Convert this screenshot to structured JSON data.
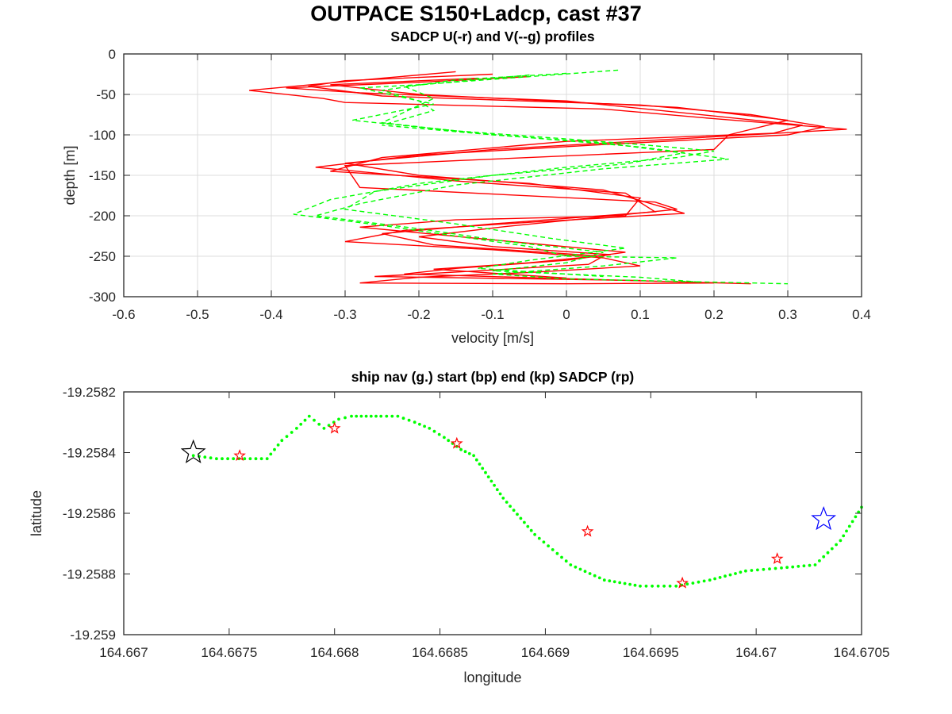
{
  "title": "OUTPACE S150+Ladcp, cast #37",
  "chart_data": [
    {
      "type": "line",
      "title": "SADCP U(-r) and V(--g) profiles",
      "xlabel": "velocity [m/s]",
      "ylabel": "depth [m]",
      "xlim": [
        -0.6,
        0.4
      ],
      "ylim": [
        -300,
        0
      ],
      "xticks": [
        "-0.6",
        "-0.5",
        "-0.4",
        "-0.3",
        "-0.2",
        "-0.1",
        "0",
        "0.1",
        "0.2",
        "0.3",
        "0.4"
      ],
      "yticks": [
        "0",
        "-50",
        "-100",
        "-150",
        "-200",
        "-250",
        "-300"
      ],
      "grid": true,
      "series": [
        {
          "color": "#ff0000",
          "style": "solid",
          "profiles": [
            {
              "x": [
                -0.15,
                -0.25,
                -0.43,
                -0.33,
                -0.3,
                0.05,
                0.2,
                0.38,
                0.15,
                -0.1,
                -0.3,
                -0.2,
                0.05,
                0.16,
                -0.05,
                -0.22,
                -0.3,
                -0.1,
                0.05,
                0.1,
                -0.05,
                -0.2,
                -0.28,
                0.0,
                0.2
              ],
              "y": [
                -22,
                -30,
                -45,
                -55,
                -60,
                -68,
                -80,
                -93,
                -105,
                -118,
                -135,
                -150,
                -168,
                -197,
                -208,
                -218,
                -232,
                -242,
                -252,
                -262,
                -270,
                -276,
                -283,
                -284,
                -283
              ]
            },
            {
              "x": [
                -0.1,
                -0.3,
                -0.35,
                -0.25,
                0.1,
                0.25,
                0.35,
                0.3,
                0.05,
                -0.2,
                -0.34,
                -0.15,
                0.08,
                0.12,
                -0.1,
                -0.25,
                -0.18,
                0.05,
                0.03,
                -0.12,
                -0.26,
                0.1
              ],
              "y": [
                -25,
                -33,
                -40,
                -52,
                -63,
                -75,
                -90,
                -100,
                -112,
                -125,
                -140,
                -157,
                -172,
                -195,
                -210,
                -222,
                -236,
                -250,
                -260,
                -268,
                -275,
                -280
              ]
            },
            {
              "x": [
                -0.05,
                -0.2,
                -0.38,
                -0.28,
                0.0,
                0.15,
                0.32,
                0.28,
                0.0,
                -0.25,
                -0.32,
                -0.05,
                0.1,
                0.08,
                -0.15,
                -0.28,
                -0.12,
                0.08,
                0.0,
                -0.15,
                -0.22,
                0.05,
                0.25
              ],
              "y": [
                -28,
                -35,
                -42,
                -48,
                -58,
                -72,
                -88,
                -98,
                -108,
                -128,
                -145,
                -160,
                -178,
                -200,
                -205,
                -214,
                -228,
                -245,
                -255,
                -265,
                -272,
                -279,
                -284
              ]
            },
            {
              "x": [
                -0.12,
                -0.32,
                -0.2,
                0.15,
                0.3,
                0.22,
                0.2,
                0.1,
                -0.15,
                -0.3,
                -0.28,
                0.12,
                0.15,
                -0.08,
                -0.2,
                -0.1,
                0.06,
                -0.05,
                -0.18,
                0.0
              ],
              "y": [
                -30,
                -38,
                -50,
                -66,
                -82,
                -100,
                -118,
                -122,
                -132,
                -138,
                -165,
                -183,
                -192,
                -213,
                -226,
                -238,
                -248,
                -258,
                -266,
                -277
              ]
            }
          ]
        },
        {
          "color": "#00ff00",
          "style": "dashed",
          "profiles": [
            {
              "x": [
                0.07,
                -0.05,
                -0.2,
                -0.28,
                -0.24,
                -0.18,
                -0.29,
                -0.15,
                0.0,
                0.1,
                0.2,
                0.15,
                0.0,
                -0.2,
                -0.32,
                -0.37,
                -0.25,
                -0.15,
                -0.05,
                0.0,
                0.15,
                0.05,
                -0.1,
                0.0,
                0.3
              ],
              "y": [
                -20,
                -28,
                -38,
                -42,
                -50,
                -62,
                -82,
                -95,
                -105,
                -112,
                -120,
                -128,
                -140,
                -160,
                -180,
                -198,
                -212,
                -225,
                -238,
                -250,
                -252,
                -262,
                -272,
                -278,
                -284
              ]
            },
            {
              "x": [
                0.0,
                -0.15,
                -0.25,
                -0.2,
                -0.18,
                -0.25,
                -0.1,
                0.05,
                0.18,
                0.22,
                0.05,
                -0.15,
                -0.28,
                -0.34,
                -0.2,
                -0.08,
                0.05,
                0.0,
                -0.1,
                0.1,
                0.18
              ],
              "y": [
                -24,
                -32,
                -45,
                -58,
                -70,
                -88,
                -100,
                -110,
                -125,
                -130,
                -142,
                -162,
                -185,
                -200,
                -216,
                -232,
                -245,
                -258,
                -268,
                -276,
                -282
              ]
            },
            {
              "x": [
                -0.05,
                -0.22,
                -0.18,
                -0.25,
                -0.12,
                0.1,
                0.16,
                0.08,
                -0.1,
                -0.26,
                -0.3,
                -0.15,
                -0.02,
                0.08,
                -0.05,
                -0.12,
                0.05
              ],
              "y": [
                -26,
                -40,
                -55,
                -85,
                -98,
                -115,
                -122,
                -136,
                -150,
                -170,
                -192,
                -210,
                -228,
                -240,
                -255,
                -265,
                -275
              ]
            }
          ]
        }
      ]
    },
    {
      "type": "scatter",
      "title": "ship nav (g.) start (bp) end (kp) SADCP (rp)",
      "xlabel": "longitude",
      "ylabel": "latitude",
      "xlim": [
        164.667,
        164.6705
      ],
      "ylim": [
        -19.259,
        -19.2582
      ],
      "xticks": [
        "164.667",
        "164.6675",
        "164.668",
        "164.6685",
        "164.669",
        "164.6695",
        "164.67",
        "164.6705"
      ],
      "yticks": [
        "-19.2582",
        "-19.2584",
        "-19.2586",
        "-19.2588",
        "-19.259"
      ],
      "grid": false,
      "nav": {
        "color": "#00ff00",
        "x": [
          164.66733,
          164.66744,
          164.66752,
          164.6676,
          164.66768,
          164.66775,
          164.66782,
          164.66788,
          164.66795,
          164.66802,
          164.66808,
          164.66815,
          164.66822,
          164.6683,
          164.66838,
          164.66845,
          164.66852,
          164.6686,
          164.66866,
          164.66873,
          164.6688,
          164.66895,
          164.66912,
          164.66928,
          164.66945,
          164.66962,
          164.66978,
          164.66995,
          164.67012,
          164.67028,
          164.6704,
          164.6705
        ],
        "y": [
          -19.25841,
          -19.25842,
          -19.25842,
          -19.25842,
          -19.25842,
          -19.25836,
          -19.25832,
          -19.25828,
          -19.25832,
          -19.25829,
          -19.25828,
          -19.25828,
          -19.25828,
          -19.25828,
          -19.2583,
          -19.25832,
          -19.25835,
          -19.25839,
          -19.25841,
          -19.25848,
          -19.25855,
          -19.25867,
          -19.25877,
          -19.25882,
          -19.25884,
          -19.25884,
          -19.25882,
          -19.25879,
          -19.25878,
          -19.25877,
          -19.25869,
          -19.25858
        ]
      },
      "start": {
        "color": "#000000",
        "x": 164.66733,
        "y": -19.2584
      },
      "end": {
        "color": "#0000ff",
        "x": 164.67032,
        "y": -19.25862
      },
      "sadcp": {
        "color": "#ff0000",
        "x": [
          164.66755,
          164.668,
          164.66858,
          164.6692,
          164.66965,
          164.6701
        ],
        "y": [
          -19.25841,
          -19.25832,
          -19.25837,
          -19.25866,
          -19.25883,
          -19.25875
        ]
      }
    }
  ]
}
